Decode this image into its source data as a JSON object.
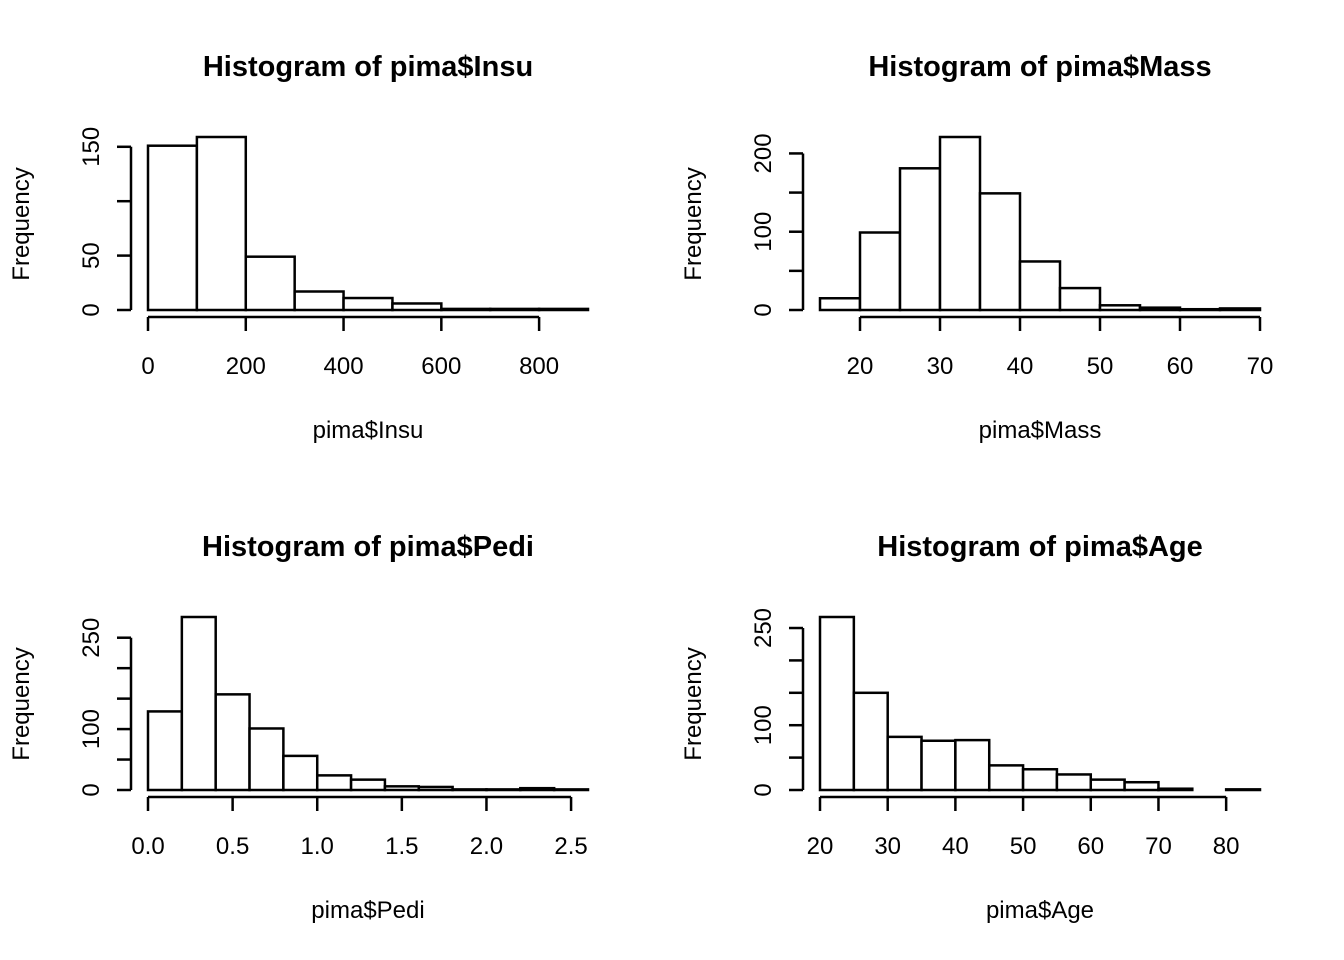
{
  "chart_data": [
    {
      "type": "bar",
      "title": "Histogram of pima$Insu",
      "xlabel": "pima$Insu",
      "ylabel": "Frequency",
      "breaks": [
        0,
        100,
        200,
        300,
        400,
        500,
        600,
        700,
        800,
        900
      ],
      "values": [
        151,
        159,
        49,
        17,
        11,
        6,
        1,
        1,
        1
      ],
      "xlim": [
        0,
        900
      ],
      "ylim": [
        0,
        159
      ],
      "xticks": [
        0,
        200,
        400,
        600,
        800
      ],
      "xtick_labels": [
        "0",
        "200",
        "400",
        "600",
        "800"
      ],
      "yticks": [
        0,
        50,
        100,
        150
      ],
      "ytick_labels": [
        "0",
        "50",
        "",
        "150"
      ]
    },
    {
      "type": "bar",
      "title": "Histogram of pima$Mass",
      "xlabel": "pima$Mass",
      "ylabel": "Frequency",
      "breaks": [
        15,
        20,
        25,
        30,
        35,
        40,
        45,
        50,
        55,
        60,
        65,
        70
      ],
      "values": [
        15,
        99,
        181,
        221,
        149,
        62,
        28,
        6,
        3,
        1,
        2
      ],
      "xlim": [
        15,
        70
      ],
      "ylim": [
        0,
        221
      ],
      "xticks": [
        20,
        30,
        40,
        50,
        60,
        70
      ],
      "xtick_labels": [
        "20",
        "30",
        "40",
        "50",
        "60",
        "70"
      ],
      "yticks": [
        0,
        50,
        100,
        150,
        200
      ],
      "ytick_labels": [
        "0",
        "",
        "100",
        "",
        "200"
      ]
    },
    {
      "type": "bar",
      "title": "Histogram of pima$Pedi",
      "xlabel": "pima$Pedi",
      "ylabel": "Frequency",
      "breaks": [
        0,
        0.2,
        0.4,
        0.6,
        0.8,
        1.0,
        1.2,
        1.4,
        1.6,
        1.8,
        2.0,
        2.2,
        2.4,
        2.6
      ],
      "values": [
        129,
        284,
        157,
        101,
        56,
        24,
        17,
        6,
        5,
        1,
        1,
        3,
        1
      ],
      "xlim": [
        0,
        2.6
      ],
      "ylim": [
        0,
        284
      ],
      "xticks": [
        0,
        0.5,
        1.0,
        1.5,
        2.0,
        2.5
      ],
      "xtick_labels": [
        "0.0",
        "0.5",
        "1.0",
        "1.5",
        "2.0",
        "2.5"
      ],
      "yticks": [
        0,
        50,
        100,
        150,
        200,
        250
      ],
      "ytick_labels": [
        "0",
        "",
        "100",
        "",
        "",
        "250"
      ]
    },
    {
      "type": "bar",
      "title": "Histogram of pima$Age",
      "xlabel": "pima$Age",
      "ylabel": "Frequency",
      "breaks": [
        20,
        25,
        30,
        35,
        40,
        45,
        50,
        55,
        60,
        65,
        70,
        75,
        80,
        85
      ],
      "values": [
        267,
        150,
        82,
        76,
        77,
        38,
        32,
        24,
        16,
        12,
        2,
        0,
        1
      ],
      "xlim": [
        20,
        85
      ],
      "ylim": [
        0,
        267
      ],
      "xticks": [
        20,
        30,
        40,
        50,
        60,
        70,
        80
      ],
      "xtick_labels": [
        "20",
        "30",
        "40",
        "50",
        "60",
        "70",
        "80"
      ],
      "yticks": [
        0,
        50,
        100,
        150,
        200,
        250
      ],
      "ytick_labels": [
        "0",
        "",
        "100",
        "",
        "",
        "250"
      ]
    }
  ]
}
